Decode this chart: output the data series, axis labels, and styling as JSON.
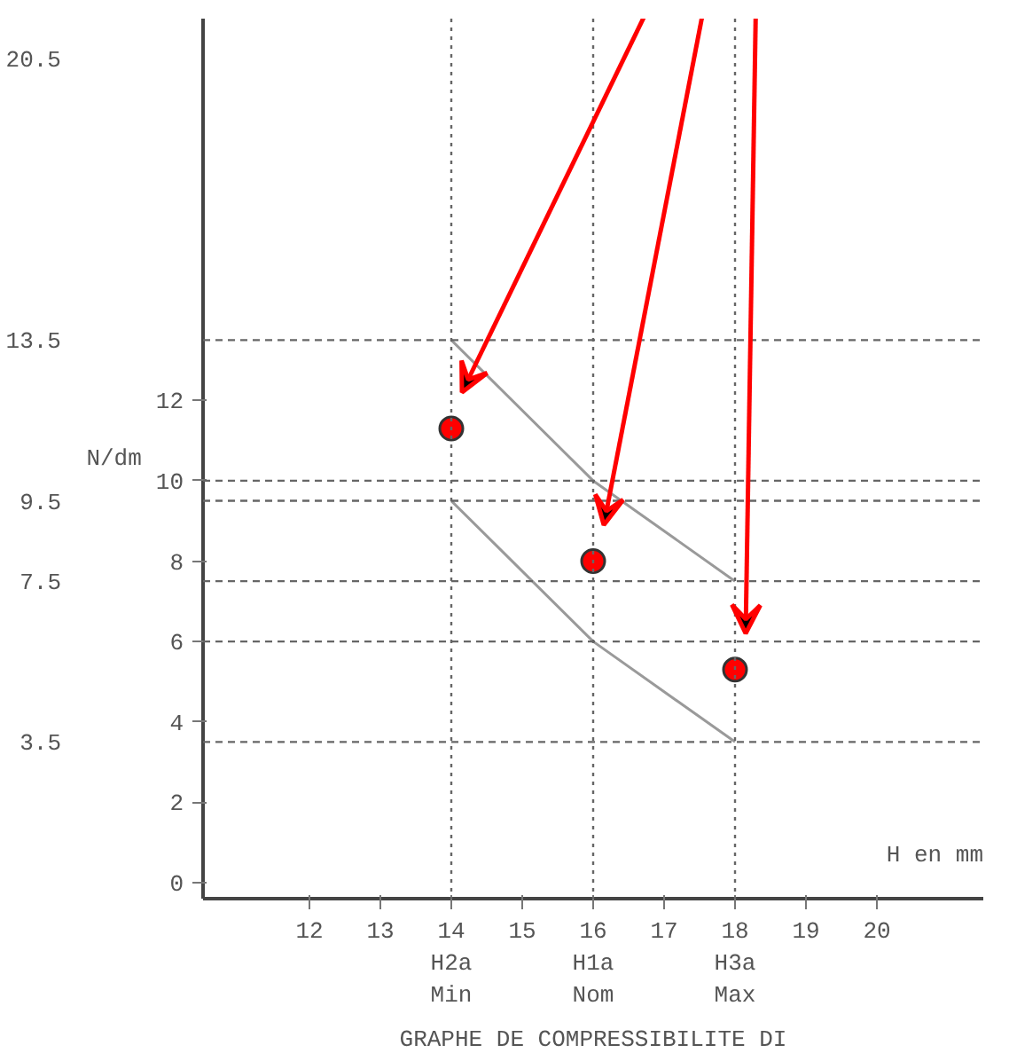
{
  "chart_data": {
    "type": "line",
    "title": "GRAPHE DE COMPRESSIBILITE DI",
    "xlabel": "H en mm",
    "ylabel": "N/dm",
    "xlim": [
      10.5,
      21.5
    ],
    "ylim": [
      -0.4,
      21.5
    ],
    "xticks": [
      12,
      13,
      {
        "value": 14,
        "label": "14\nH2a\nMin"
      },
      15,
      {
        "value": 16,
        "label": "16\nH1a\nNom"
      },
      17,
      {
        "value": 18,
        "label": "18\nH3a\nMax"
      },
      19,
      20
    ],
    "yticks": [
      0,
      2,
      4,
      6,
      8,
      10,
      12
    ],
    "y2lim": [
      -0.4,
      21.5
    ],
    "y2ticks": [
      3.5,
      7.5,
      9.5,
      13.5,
      20.5
    ],
    "series": [
      {
        "color": "#9a9a9a",
        "x": [
          14,
          16,
          18
        ],
        "values": [
          13.5,
          10,
          7.5
        ]
      },
      {
        "color": "#9a9a9a",
        "x": [
          14,
          16,
          18
        ],
        "values": [
          9.5,
          6,
          3.5
        ]
      },
      {
        "type": "scatter",
        "marker": "circle",
        "color": "#ff0000",
        "x": [
          14,
          16,
          18
        ],
        "values": [
          11.3,
          8.0,
          5.3
        ]
      }
    ],
    "ref_lines": [
      {
        "axis": "y",
        "value": 13.5,
        "line_style": "dashed"
      },
      {
        "axis": "y",
        "value": 10,
        "line_style": "dashed"
      },
      {
        "axis": "y",
        "value": 9.5,
        "line_style": "dashed"
      },
      {
        "axis": "y",
        "value": 7.5,
        "line_style": "dashed"
      },
      {
        "axis": "y",
        "value": 6,
        "line_style": "dashed"
      },
      {
        "axis": "y",
        "value": 3.5,
        "line_style": "dashed"
      },
      {
        "axis": "x",
        "value": 14,
        "line_style": "dotted"
      },
      {
        "axis": "x",
        "value": 16,
        "line_style": "dotted"
      },
      {
        "axis": "x",
        "value": 18,
        "line_style": "dotted"
      }
    ],
    "grid": false
  }
}
